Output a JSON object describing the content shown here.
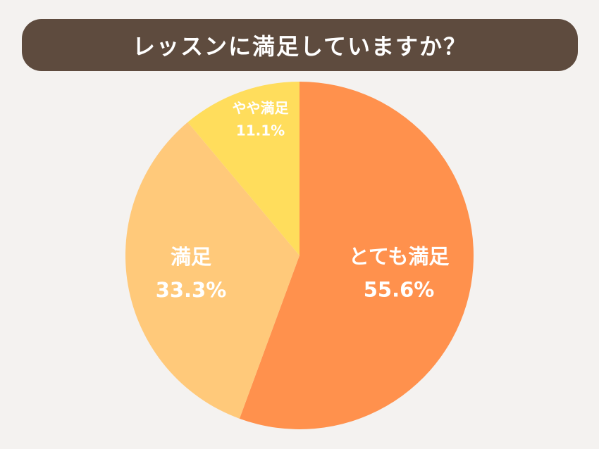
{
  "title": "レッスンに満足していますか？",
  "chart_data": {
    "type": "pie",
    "start_angle": "12 o'clock",
    "direction": "clockwise",
    "slices": [
      {
        "label": "とても満足",
        "value": 55.6,
        "value_label": "55.6%",
        "color": "#ff914d"
      },
      {
        "label": "満足",
        "value": 33.3,
        "value_label": "33.3%",
        "color": "#ffc97a"
      },
      {
        "label": "やや満足",
        "value": 11.1,
        "value_label": "11.1%",
        "color": "#ffdd5c"
      }
    ]
  },
  "colors": {
    "background": "#f4f2f0",
    "title_bar": "#5e4b3e",
    "title_text": "#ffffff",
    "label_text": "#ffffff"
  }
}
